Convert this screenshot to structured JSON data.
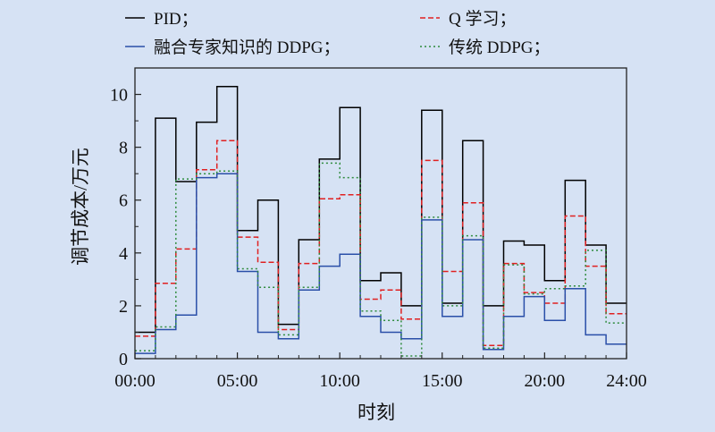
{
  "chart_data": {
    "type": "line",
    "step": true,
    "xlabel": "时刻",
    "ylabel": "调节成本/万元",
    "xlim": [
      0,
      24
    ],
    "ylim": [
      0,
      11
    ],
    "xticks": [
      0,
      5,
      10,
      15,
      20,
      24
    ],
    "xtick_labels": [
      "00:00",
      "05:00",
      "10:00",
      "15:00",
      "20:00",
      "24:00"
    ],
    "yticks": [
      0,
      2,
      4,
      6,
      8,
      10
    ],
    "ytick_labels": [
      "0",
      "2",
      "4",
      "6",
      "8",
      "10"
    ],
    "grid": false,
    "legend_position": "top",
    "series": [
      {
        "name": "PID；",
        "color": "#000000",
        "dash": "solid",
        "values": [
          1.0,
          9.1,
          6.7,
          8.95,
          10.3,
          4.85,
          6.0,
          1.3,
          4.5,
          7.55,
          9.5,
          2.95,
          3.25,
          2.0,
          9.4,
          2.1,
          8.25,
          2.0,
          4.45,
          4.3,
          2.95,
          6.75,
          4.3,
          2.1
        ]
      },
      {
        "name": "Q 学习；",
        "color": "#e02020",
        "dash": "dashed",
        "values": [
          0.85,
          2.85,
          4.15,
          7.15,
          8.25,
          4.6,
          3.65,
          1.1,
          3.6,
          6.05,
          6.2,
          2.25,
          2.6,
          1.5,
          7.5,
          3.3,
          5.9,
          0.5,
          3.6,
          2.5,
          2.1,
          5.4,
          3.5,
          1.7
        ]
      },
      {
        "name": "融合专家知识的 DDPG；",
        "color": "#2a4fa8",
        "dash": "solid",
        "values": [
          0.2,
          1.1,
          1.65,
          6.85,
          7.0,
          3.3,
          1.0,
          0.75,
          2.6,
          3.5,
          3.95,
          1.6,
          1.0,
          0.75,
          5.25,
          1.6,
          4.5,
          0.35,
          1.6,
          2.35,
          1.45,
          2.65,
          0.9,
          0.55
        ]
      },
      {
        "name": "传统 DDPG；",
        "color": "#2e8b3c",
        "dash": "dotted",
        "values": [
          0.3,
          1.2,
          6.8,
          7.0,
          7.1,
          3.4,
          2.7,
          0.9,
          2.7,
          7.4,
          6.85,
          1.8,
          1.45,
          0.1,
          5.35,
          2.0,
          4.65,
          0.4,
          3.55,
          2.45,
          2.65,
          2.75,
          4.1,
          1.35
        ]
      }
    ]
  }
}
